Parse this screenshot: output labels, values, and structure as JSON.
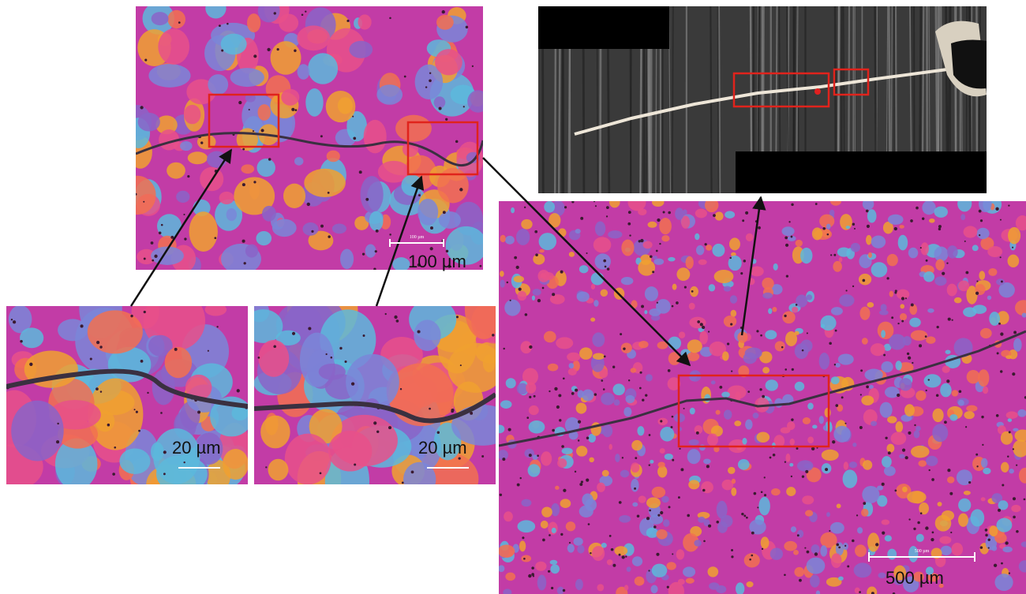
{
  "panels": [
    {
      "scale_label": "100 µm",
      "scale_bar_text": "100 µm"
    },
    {
      "scale_label": "20 µm"
    },
    {
      "scale_label": "20 µm"
    },
    {
      "scale_label": "500 µm",
      "scale_bar_text": "500 µm"
    }
  ]
}
